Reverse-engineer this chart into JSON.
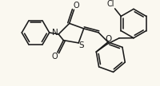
{
  "bg_color": "#faf8f0",
  "line_color": "#1a1a1a",
  "lw": 1.15,
  "figsize": [
    2.0,
    1.08
  ],
  "dpi": 100,
  "xlim": [
    0,
    200
  ],
  "ylim": [
    0,
    108
  ]
}
